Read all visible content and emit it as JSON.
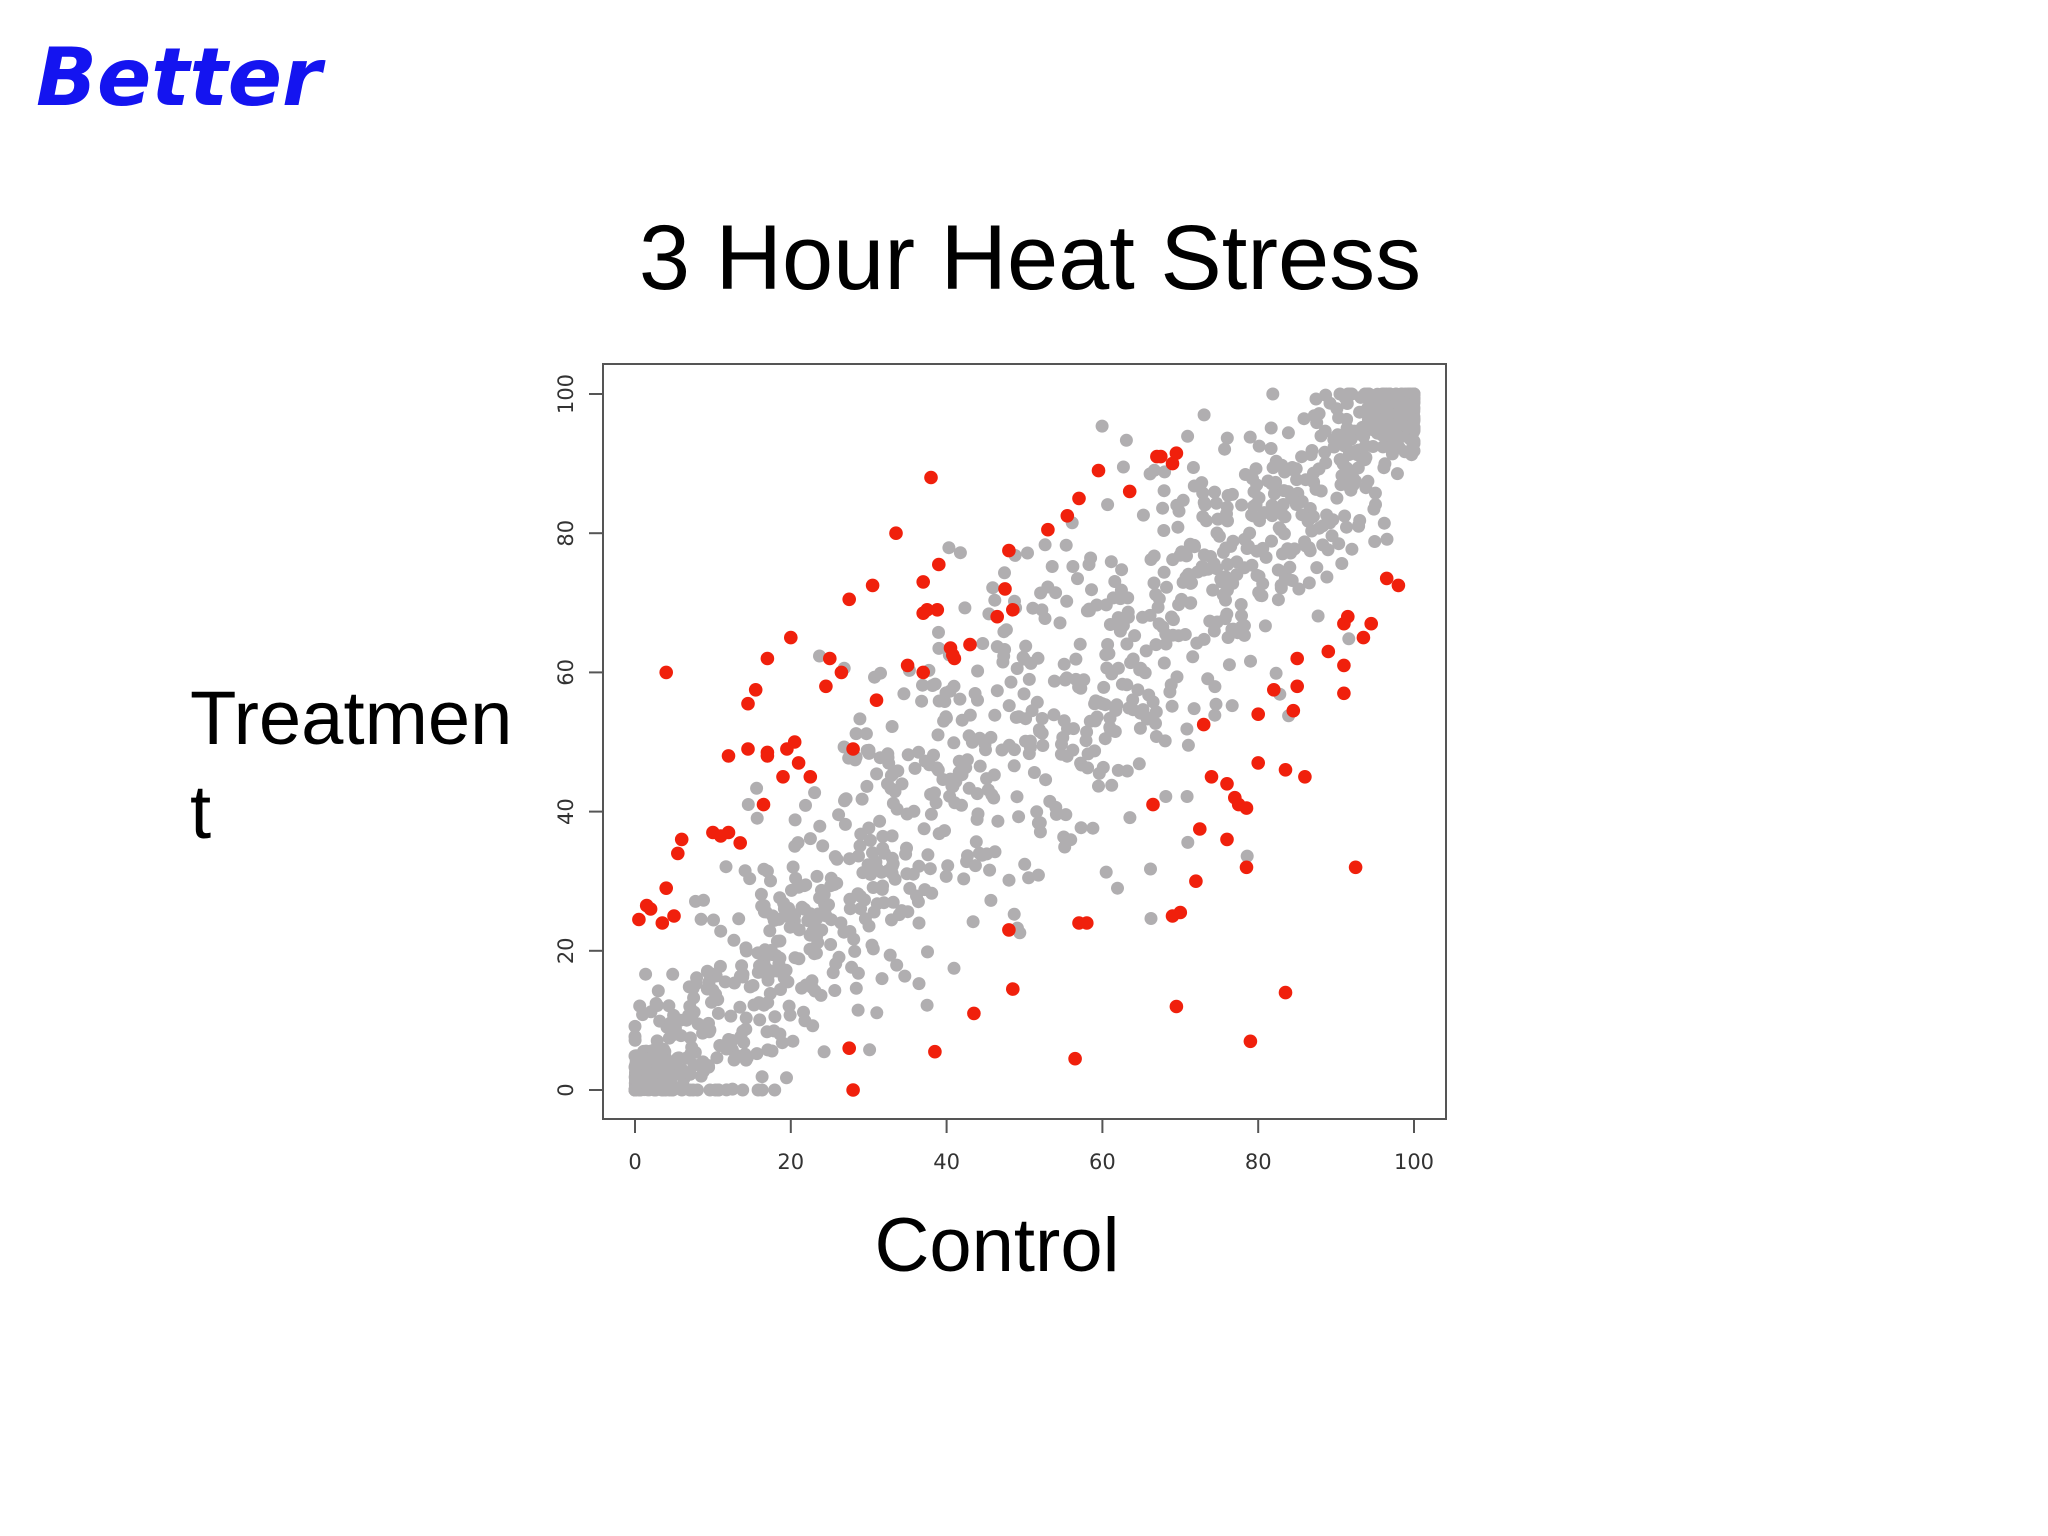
{
  "slide": {
    "heading": "Better"
  },
  "chart_data": {
    "type": "scatter",
    "title": "3 Hour Heat Stress",
    "xlabel": "Control",
    "ylabel_lines": [
      "Treatmen",
      "t"
    ],
    "xlim": [
      -4,
      104
    ],
    "ylim": [
      -4,
      104
    ],
    "xticks": [
      0,
      20,
      40,
      60,
      80,
      100
    ],
    "yticks": [
      0,
      20,
      40,
      60,
      80,
      100
    ],
    "grid": false,
    "legend": "none",
    "colors": {
      "background_points": "#b0aeb0",
      "highlight_points": "#f0200c",
      "axis": "#555555"
    },
    "series": [
      {
        "role": "significant",
        "points": [
          [
            4,
            60
          ],
          [
            38,
            88
          ],
          [
            33.5,
            80
          ],
          [
            30.5,
            72.5
          ],
          [
            37,
            73
          ],
          [
            39,
            75.5
          ],
          [
            37.5,
            69
          ],
          [
            38.8,
            69
          ],
          [
            37,
            68.5
          ],
          [
            35,
            61
          ],
          [
            37,
            60
          ],
          [
            40.5,
            63.5
          ],
          [
            41,
            62
          ],
          [
            43,
            64
          ],
          [
            40.8,
            62.5
          ],
          [
            46.5,
            68
          ],
          [
            47.5,
            72
          ],
          [
            48.5,
            69
          ],
          [
            48,
            77.5
          ],
          [
            53,
            80.5
          ],
          [
            55.5,
            82.5
          ],
          [
            57,
            85
          ],
          [
            59.5,
            89
          ],
          [
            63.5,
            86
          ],
          [
            67,
            91
          ],
          [
            67.5,
            91
          ],
          [
            69,
            90
          ],
          [
            69.5,
            91.5
          ],
          [
            17,
            62
          ],
          [
            20,
            65
          ],
          [
            15.5,
            57.5
          ],
          [
            14.5,
            55.5
          ],
          [
            25,
            62
          ],
          [
            26.5,
            60
          ],
          [
            24.5,
            58
          ],
          [
            27.5,
            70.5
          ],
          [
            31,
            56
          ],
          [
            12,
            48
          ],
          [
            14.5,
            49
          ],
          [
            17,
            48.5
          ],
          [
            17,
            48
          ],
          [
            19.5,
            49
          ],
          [
            20.5,
            50
          ],
          [
            21,
            47
          ],
          [
            19,
            45
          ],
          [
            22.5,
            45
          ],
          [
            28,
            49
          ],
          [
            16.5,
            41
          ],
          [
            10,
            37
          ],
          [
            11,
            36.5
          ],
          [
            12,
            37
          ],
          [
            13.5,
            35.5
          ],
          [
            6,
            36
          ],
          [
            5.5,
            34
          ],
          [
            4,
            29
          ],
          [
            1.5,
            26.5
          ],
          [
            2,
            26
          ],
          [
            0.5,
            24.5
          ],
          [
            3.5,
            24
          ],
          [
            5,
            25
          ],
          [
            27.5,
            6
          ],
          [
            28,
            0
          ],
          [
            38.5,
            5.5
          ],
          [
            43.5,
            11
          ],
          [
            48,
            23
          ],
          [
            48.5,
            14.5
          ],
          [
            57,
            24
          ],
          [
            58,
            24
          ],
          [
            56.5,
            4.5
          ],
          [
            66.5,
            41
          ],
          [
            69,
            25
          ],
          [
            70,
            25.5
          ],
          [
            69.5,
            12
          ],
          [
            72,
            30
          ],
          [
            72.5,
            37.5
          ],
          [
            73,
            52.5
          ],
          [
            74,
            45
          ],
          [
            76,
            44
          ],
          [
            77,
            42
          ],
          [
            77.5,
            41
          ],
          [
            78.5,
            40.5
          ],
          [
            76,
            36
          ],
          [
            78.5,
            32
          ],
          [
            80,
            47
          ],
          [
            80,
            54
          ],
          [
            82,
            57.5
          ],
          [
            84.5,
            54.5
          ],
          [
            85,
            58
          ],
          [
            85,
            62
          ],
          [
            83.5,
            46
          ],
          [
            86,
            45
          ],
          [
            79,
            7
          ],
          [
            83.5,
            14
          ],
          [
            89,
            63
          ],
          [
            91,
            61
          ],
          [
            91,
            57
          ],
          [
            91,
            67
          ],
          [
            91.5,
            68
          ],
          [
            93.5,
            65
          ],
          [
            94.5,
            67
          ],
          [
            96.5,
            73.5
          ],
          [
            98,
            72.5
          ],
          [
            92.5,
            32
          ]
        ]
      }
    ]
  }
}
